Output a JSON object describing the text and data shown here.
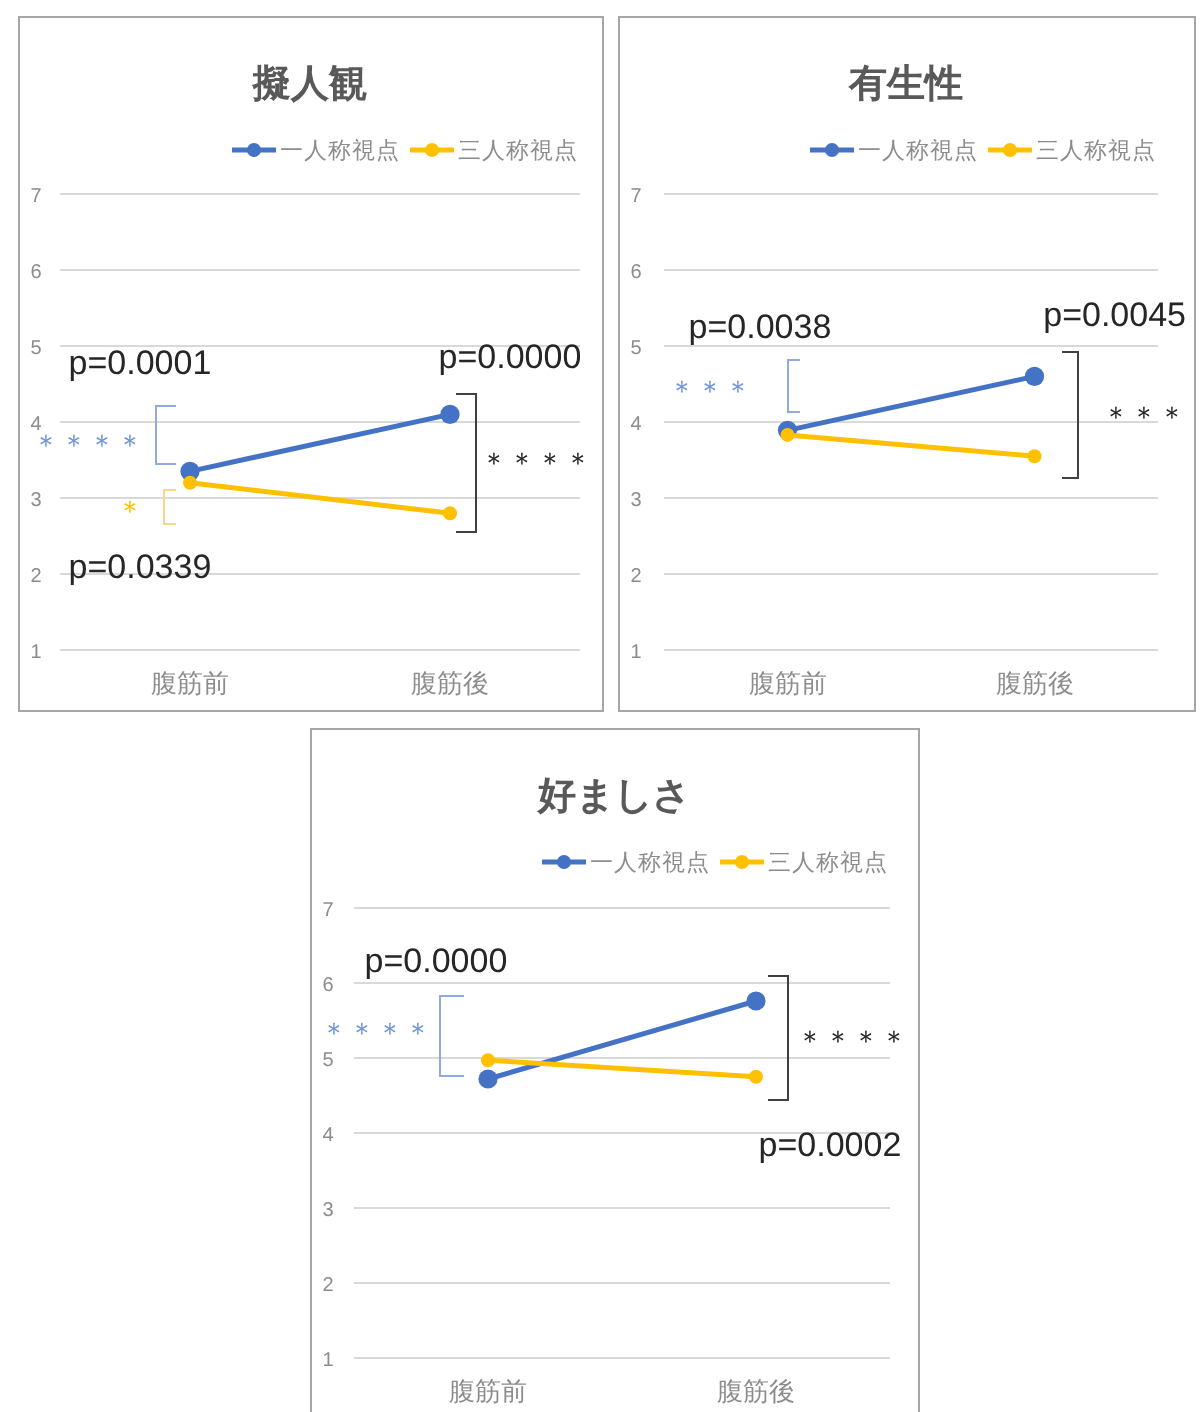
{
  "chart_data": [
    {
      "type": "line",
      "title": "擬人観",
      "categories": [
        "腹筋前",
        "腹筋後"
      ],
      "series": [
        {
          "name": "一人称視点",
          "color": "#4472c4",
          "values": [
            3.35,
            4.1
          ]
        },
        {
          "name": "三人称視点",
          "color": "#ffc000",
          "values": [
            3.2,
            2.8
          ]
        }
      ],
      "ylim": [
        1,
        7
      ],
      "yticks": [
        1,
        2,
        3,
        4,
        5,
        6,
        7
      ],
      "grid": "y",
      "legend": "top",
      "marker": "circle",
      "annotations": [
        "p=0.0001",
        "＊＊＊＊",
        "＊",
        "p=0.0339",
        "p=0.0000",
        "＊＊＊＊"
      ]
    },
    {
      "type": "line",
      "title": "有生性",
      "categories": [
        "腹筋前",
        "腹筋後"
      ],
      "series": [
        {
          "name": "一人称視点",
          "color": "#4472c4",
          "values": [
            3.89,
            4.6
          ]
        },
        {
          "name": "三人称視点",
          "color": "#ffc000",
          "values": [
            3.83,
            3.55
          ]
        }
      ],
      "ylim": [
        1,
        7
      ],
      "yticks": [
        1,
        2,
        3,
        4,
        5,
        6,
        7
      ],
      "grid": "y",
      "legend": "top",
      "marker": "circle",
      "annotations": [
        "p=0.0038",
        "＊＊＊",
        "p=0.0045",
        "＊＊＊"
      ]
    },
    {
      "type": "line",
      "title": "好ましさ",
      "categories": [
        "腹筋前",
        "腹筋後"
      ],
      "series": [
        {
          "name": "一人称視点",
          "color": "#4472c4",
          "values": [
            4.72,
            5.76
          ]
        },
        {
          "name": "三人称視点",
          "color": "#ffc000",
          "values": [
            4.97,
            4.75
          ]
        }
      ],
      "ylim": [
        1,
        7
      ],
      "yticks": [
        1,
        2,
        3,
        4,
        5,
        6,
        7
      ],
      "grid": "y",
      "legend": "top",
      "marker": "circle",
      "annotations": [
        "p=0.0000",
        "＊＊＊＊",
        "＊＊＊＊",
        "p=0.0002"
      ]
    }
  ]
}
